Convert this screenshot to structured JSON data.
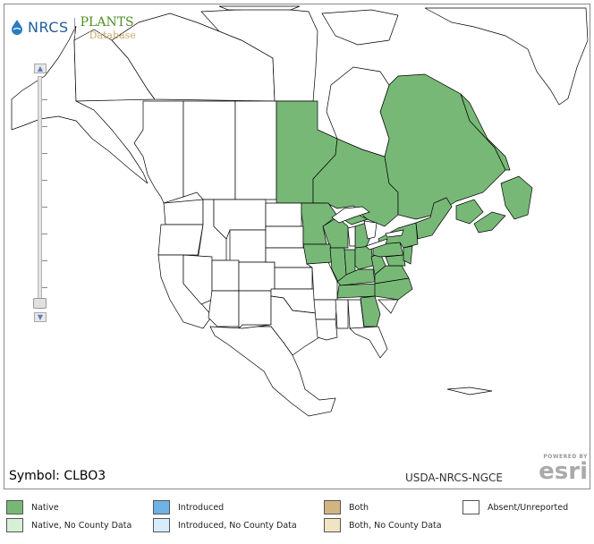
{
  "header": {
    "nrcs_logo_text": "NRCS",
    "plants_logo_text": "PLANTS",
    "plants_sub_text": "Database"
  },
  "map": {
    "symbol_label": "Symbol: CLBO3",
    "credit": "USDA-NRCS-NGCE",
    "esri_powered": "POWERED BY",
    "esri_logo": "esri",
    "zoom_in": "▲",
    "zoom_out": "▼",
    "colors": {
      "native": "#77b877",
      "absent": "#ffffff",
      "border": "#000000"
    },
    "native_regions": [
      "Manitoba",
      "Ontario",
      "Quebec",
      "New Brunswick",
      "Nova Scotia",
      "Prince Edward Island",
      "Newfoundland and Labrador",
      "Minnesota",
      "Wisconsin",
      "Michigan",
      "Iowa",
      "Illinois",
      "Indiana",
      "Ohio",
      "Pennsylvania",
      "New York",
      "Vermont",
      "New Hampshire",
      "Maine",
      "Massachusetts",
      "Connecticut",
      "Rhode Island",
      "New Jersey",
      "Delaware",
      "Maryland",
      "West Virginia",
      "Virginia",
      "Kentucky",
      "Tennessee",
      "North Carolina",
      "Georgia"
    ]
  },
  "legend": {
    "items": [
      {
        "label": "Native",
        "color": "#77b877"
      },
      {
        "label": "Native, No County Data",
        "color": "#d6f0d6"
      },
      {
        "label": "Introduced",
        "color": "#6fb3e6"
      },
      {
        "label": "Introduced, No County Data",
        "color": "#d5eefa"
      },
      {
        "label": "Both",
        "color": "#d2b482"
      },
      {
        "label": "Both, No County Data",
        "color": "#f1e4c3"
      },
      {
        "label": "Absent/Unreported",
        "color": "#ffffff"
      }
    ]
  }
}
